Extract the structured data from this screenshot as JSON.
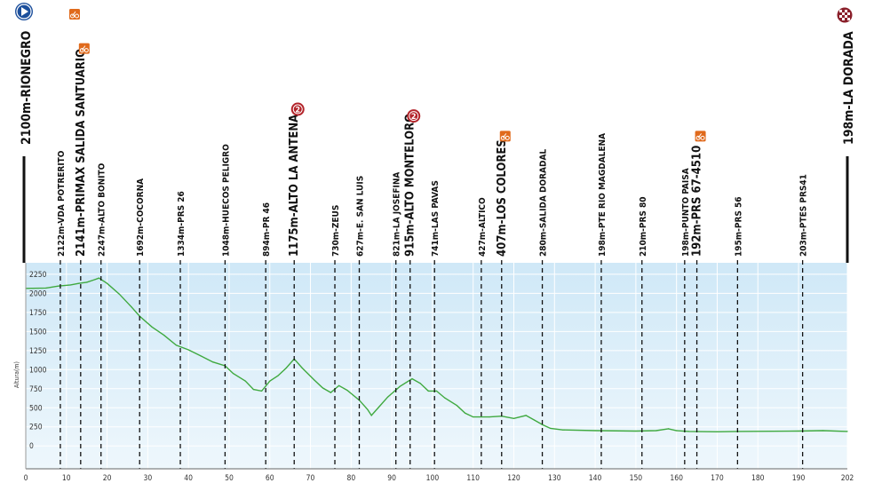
{
  "chart_data": {
    "type": "area",
    "title": "",
    "xlabel": "",
    "ylabel": "Altura(m)",
    "xlim": [
      0,
      202
    ],
    "ylim": [
      -300,
      2400
    ],
    "x_ticks": [
      0,
      10,
      20,
      30,
      40,
      50,
      60,
      70,
      80,
      90,
      100,
      110,
      120,
      130,
      140,
      150,
      160,
      170,
      180,
      190,
      202
    ],
    "y_ticks": [
      0,
      250,
      500,
      750,
      1000,
      1250,
      1500,
      1750,
      2000,
      2250
    ],
    "grid": true,
    "legend": "none",
    "profile": [
      [
        0,
        2065
      ],
      [
        5,
        2070
      ],
      [
        8,
        2095
      ],
      [
        11,
        2110
      ],
      [
        13,
        2130
      ],
      [
        15,
        2145
      ],
      [
        17,
        2180
      ],
      [
        18,
        2200
      ],
      [
        20,
        2130
      ],
      [
        23,
        1990
      ],
      [
        26,
        1820
      ],
      [
        28,
        1700
      ],
      [
        31,
        1560
      ],
      [
        34,
        1450
      ],
      [
        37,
        1320
      ],
      [
        40,
        1260
      ],
      [
        43,
        1180
      ],
      [
        46,
        1100
      ],
      [
        49,
        1050
      ],
      [
        51,
        950
      ],
      [
        54,
        850
      ],
      [
        56,
        740
      ],
      [
        58,
        720
      ],
      [
        60,
        850
      ],
      [
        62,
        920
      ],
      [
        64,
        1020
      ],
      [
        66,
        1140
      ],
      [
        68,
        1020
      ],
      [
        71,
        860
      ],
      [
        73,
        760
      ],
      [
        75,
        700
      ],
      [
        77,
        790
      ],
      [
        79,
        730
      ],
      [
        82,
        600
      ],
      [
        84,
        480
      ],
      [
        85,
        400
      ],
      [
        87,
        520
      ],
      [
        89,
        640
      ],
      [
        92,
        780
      ],
      [
        95,
        880
      ],
      [
        97,
        820
      ],
      [
        99,
        720
      ],
      [
        101,
        720
      ],
      [
        103,
        630
      ],
      [
        106,
        530
      ],
      [
        108,
        430
      ],
      [
        110,
        380
      ],
      [
        112,
        380
      ],
      [
        114,
        380
      ],
      [
        117,
        390
      ],
      [
        120,
        360
      ],
      [
        123,
        400
      ],
      [
        125,
        340
      ],
      [
        127,
        280
      ],
      [
        129,
        230
      ],
      [
        132,
        210
      ],
      [
        140,
        200
      ],
      [
        150,
        195
      ],
      [
        155,
        200
      ],
      [
        158,
        225
      ],
      [
        160,
        200
      ],
      [
        163,
        190
      ],
      [
        170,
        185
      ],
      [
        175,
        190
      ],
      [
        190,
        195
      ],
      [
        196,
        200
      ],
      [
        202,
        190
      ]
    ],
    "start_label": "2100m-RIONEGRO",
    "end_label": "198m-LA DORADA",
    "start_icon": "start-flag-icon",
    "end_icon": "finish-flag-icon",
    "points": [
      {
        "km": 8.5,
        "label": "2122m-VDA POTRERITO",
        "bold": false
      },
      {
        "km": 13.5,
        "label": "2141m-PRIMAX SALIDA SANTUARIO",
        "bold": true,
        "icon": "sprint-icon"
      },
      {
        "km": 18.5,
        "label": "2247m-ALTO BONITO",
        "bold": false
      },
      {
        "km": 28,
        "label": "1692m-COCORNA",
        "bold": false
      },
      {
        "km": 38,
        "label": "1334m-PRS 26",
        "bold": false
      },
      {
        "km": 49,
        "label": "1048m-HUECOS PELIGRO",
        "bold": false
      },
      {
        "km": 59,
        "label": "894m-PR 46",
        "bold": false
      },
      {
        "km": 66,
        "label": "1175m-ALTO LA ANTENA",
        "bold": true,
        "icon": "mountain-cat2-icon"
      },
      {
        "km": 76,
        "label": "730m-ZEUS",
        "bold": false
      },
      {
        "km": 82,
        "label": "627m-E. SAN LUIS",
        "bold": false
      },
      {
        "km": 91,
        "label": "821m-LA JOSEFINA",
        "bold": false
      },
      {
        "km": 94.5,
        "label": "915m-ALTO MONTELORO",
        "bold": true,
        "icon": "mountain-cat2-icon"
      },
      {
        "km": 100.5,
        "label": "741m-LAS PAVAS",
        "bold": false
      },
      {
        "km": 112,
        "label": "427m-ALTICO",
        "bold": false
      },
      {
        "km": 117,
        "label": "407m-LOS COLORES",
        "bold": true,
        "icon": "sprint-icon"
      },
      {
        "km": 127,
        "label": "280m-SALIDA DORADAL",
        "bold": false
      },
      {
        "km": 141.5,
        "label": "198m-PTE RIO MAGDALENA",
        "bold": false
      },
      {
        "km": 151.5,
        "label": "210m-PRS 80",
        "bold": false
      },
      {
        "km": 162,
        "label": "198m-PUNTO PAISA",
        "bold": false
      },
      {
        "km": 165,
        "label": "192m-PRS 67-4510",
        "bold": true,
        "icon": "sprint-icon"
      },
      {
        "km": 175,
        "label": "195m-PRS 56",
        "bold": false
      },
      {
        "km": 191,
        "label": "203m-PTES PRS41",
        "bold": false
      }
    ],
    "colors": {
      "line": "#3fa93f",
      "sky_top": "#cfe8f7",
      "sky_bottom": "#eef7fc",
      "divider": "#111111",
      "grid": "#ffffff",
      "axis_text": "#333333",
      "sprint": "#e06a1c",
      "mountain": "#b3242a",
      "start": "#1c4f9c"
    }
  }
}
